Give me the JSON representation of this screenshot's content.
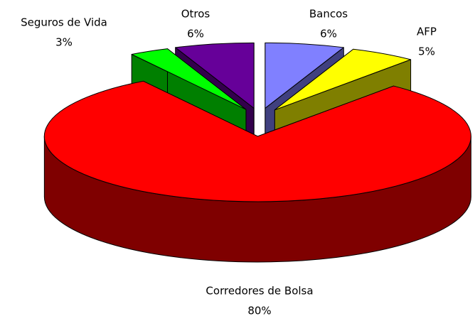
{
  "chart_data": {
    "type": "pie3d",
    "categories": [
      "Bancos",
      "AFP",
      "Corredores de Bolsa",
      "Seguros de Vida",
      "Otros"
    ],
    "values": [
      6,
      5,
      80,
      3,
      6
    ],
    "value_labels": [
      "6%",
      "5%",
      "80%",
      "3%",
      "6%"
    ],
    "colors": [
      "#8080ff",
      "#ffff00",
      "#ff0000",
      "#00ff00",
      "#660099"
    ]
  }
}
